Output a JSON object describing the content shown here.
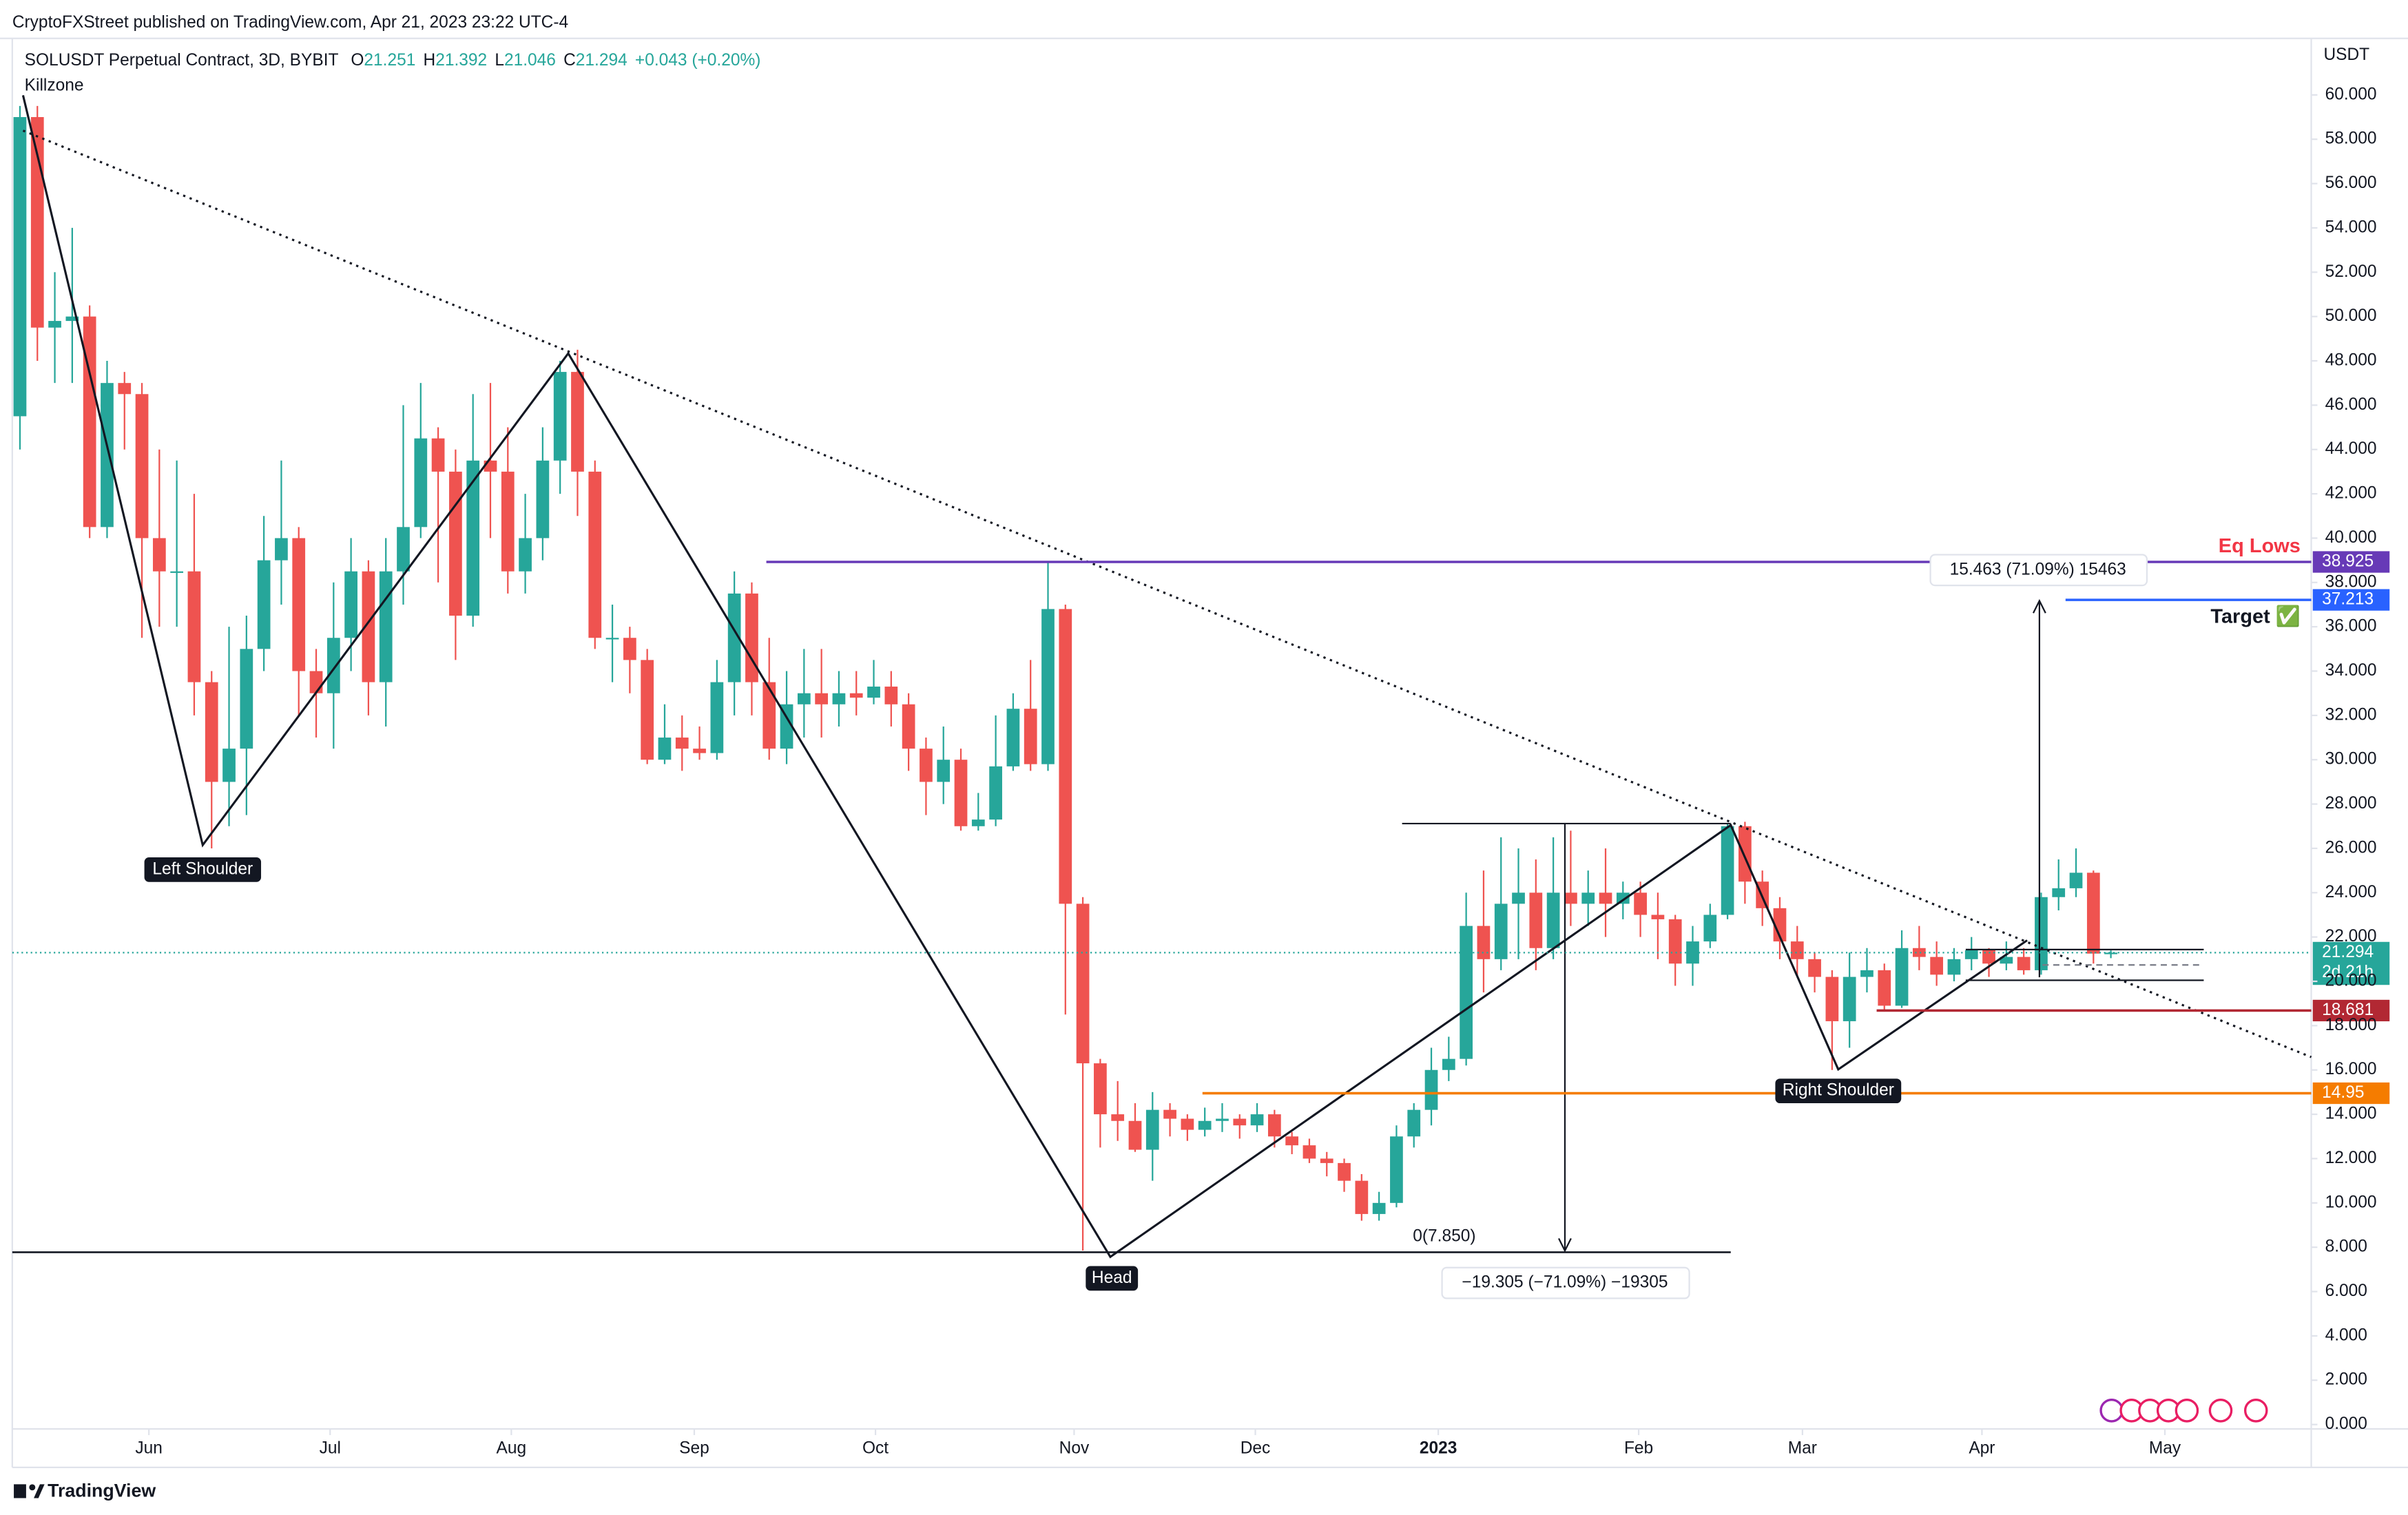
{
  "header": "CryptoFXStreet published on TradingView.com, Apr 21, 2023 23:22 UTC-4",
  "footer": "TradingView",
  "chart_data": {
    "type": "candlestick",
    "title": "SOLUSDT Perpetual Contract, 3D, BYBIT",
    "ohlc": [
      {
        "label": "O",
        "value": 21.251
      },
      {
        "label": "H",
        "value": 21.392
      },
      {
        "label": "L",
        "value": 21.046
      },
      {
        "label": "C",
        "value": 21.294
      }
    ],
    "change": "+0.043 (+0.20%)",
    "indicator": "Killzone",
    "currency": "USDT",
    "countdown": "2d 21h",
    "annotations": {
      "left_shoulder": "Left Shoulder",
      "head": "Head",
      "right_shoulder": "Right Shoulder",
      "eq_lows": "Eq Lows",
      "target": "Target ✅",
      "up_measure": "15.463 (71.09%) 15463",
      "down_measure": "−19.305 (−71.09%) −19305",
      "fib_zero": "0(7.850)"
    },
    "price_lines": [
      {
        "value": 38.925,
        "color": "#673ab7"
      },
      {
        "value": 37.213,
        "color": "#2962ff"
      },
      {
        "value": 18.681,
        "color": "#b22833"
      },
      {
        "value": 14.95,
        "color": "#f57c00"
      }
    ],
    "up_color": "#26a69a",
    "down_color": "#ef5350",
    "open": [
      45.5,
      59,
      49.5,
      49.8,
      50,
      40.5,
      47,
      46.5,
      40,
      38.5,
      38.5,
      33.5,
      29,
      30.5,
      35,
      39,
      40,
      34,
      33,
      35.5,
      38.5,
      33.5,
      38.5,
      40.5,
      44.5,
      43,
      36.5,
      43.5,
      43,
      38.5,
      40,
      43.5,
      47.5,
      43,
      35.5,
      35.5,
      34.5,
      30,
      31,
      30.5,
      30.3,
      33.5,
      37.5,
      33.5,
      30.5,
      32.5,
      33,
      32.5,
      33,
      32.8,
      33.3,
      32.5,
      30.5,
      29,
      30,
      27,
      27.3,
      29.7,
      32.3,
      29.8,
      36.8,
      23.5,
      16.3,
      14,
      13.7,
      12.4,
      14.2,
      13.8,
      13.3,
      13.7,
      13.8,
      13.5,
      14,
      13,
      12.6,
      12,
      11.8,
      11,
      9.5,
      10,
      13,
      14.2,
      16,
      16.5,
      22.5,
      21,
      23.5,
      24,
      21.5,
      24,
      23.5,
      24,
      23.5,
      24,
      23,
      22.8,
      20.8,
      21.8,
      23,
      27,
      24.5,
      23.3,
      21.8,
      21,
      20.2,
      18.2,
      20.2,
      20.5,
      18.9,
      21.5,
      21.1,
      20.3,
      21,
      21.4,
      20.8,
      21.1,
      20.5,
      23.8,
      24.2,
      24.9,
      21.251
    ],
    "close": [
      59,
      49.5,
      49.8,
      50,
      40.5,
      47,
      46.5,
      40,
      38.5,
      38.5,
      33.5,
      29,
      30.5,
      35,
      39,
      40,
      34,
      33,
      35.5,
      38.5,
      33.5,
      38.5,
      40.5,
      44.5,
      43,
      36.5,
      43.5,
      43,
      38.5,
      40,
      43.5,
      47.5,
      43,
      35.5,
      35.5,
      34.5,
      30,
      31,
      30.5,
      30.3,
      33.5,
      37.5,
      33.5,
      30.5,
      32.5,
      33,
      32.5,
      33,
      32.8,
      33.3,
      32.5,
      30.5,
      29,
      30,
      27,
      27.3,
      29.7,
      32.3,
      29.8,
      36.8,
      23.5,
      16.3,
      14,
      13.7,
      12.4,
      14.2,
      13.8,
      13.3,
      13.7,
      13.8,
      13.5,
      14,
      13,
      12.6,
      12,
      11.8,
      11,
      9.5,
      10,
      13,
      14.2,
      16,
      16.5,
      22.5,
      21,
      23.5,
      24,
      21.5,
      24,
      23.5,
      24,
      23.5,
      24,
      23,
      22.8,
      20.8,
      21.8,
      23,
      27,
      24.5,
      23.3,
      21.8,
      21,
      20.2,
      18.2,
      20.2,
      20.5,
      18.9,
      21.5,
      21.1,
      20.3,
      21,
      21.4,
      20.8,
      21.1,
      20.5,
      23.8,
      24.2,
      24.9,
      21.251,
      21.294
    ],
    "high": [
      59.5,
      59.5,
      52,
      54,
      50.5,
      48,
      47.5,
      47,
      44,
      43.5,
      42,
      34,
      36,
      36.5,
      41,
      43.5,
      40.5,
      35,
      38,
      40,
      39,
      40,
      46,
      47,
      45,
      44,
      46.5,
      47,
      45,
      42,
      45,
      48,
      48.5,
      43.5,
      37,
      36,
      35,
      32.5,
      32,
      31.5,
      34.5,
      38.5,
      38,
      35.5,
      34,
      35,
      35,
      34,
      34,
      34.5,
      34,
      33,
      31,
      31.5,
      30.5,
      28.5,
      32,
      33,
      34.5,
      38.9,
      37,
      23.8,
      16.5,
      15.5,
      14.5,
      15,
      14.5,
      14,
      14.3,
      14.5,
      14,
      14.5,
      14.2,
      13.2,
      12.9,
      12.3,
      12,
      11.3,
      10.5,
      13.5,
      14.5,
      17,
      17.5,
      24,
      25,
      26.5,
      26,
      25.5,
      26.5,
      26.8,
      25,
      26,
      24.5,
      24.5,
      24,
      23,
      22.5,
      23.5,
      27.1,
      27.2,
      25,
      23.8,
      22.5,
      21.3,
      20.5,
      21.3,
      21.5,
      20.8,
      22.3,
      22.5,
      21.8,
      21.5,
      22,
      21.5,
      21.8,
      21.5,
      24,
      25.5,
      26,
      25,
      21.392
    ],
    "low": [
      44,
      48,
      47,
      47,
      40,
      40,
      44,
      35.5,
      36,
      36,
      32,
      26,
      27,
      27.5,
      34,
      37,
      32,
      31,
      30.5,
      34,
      32,
      31.5,
      37,
      40,
      38,
      34.5,
      36,
      40,
      37.5,
      37.5,
      39,
      42,
      41,
      35,
      33.5,
      33,
      29.8,
      29.8,
      29.5,
      30,
      30,
      32,
      32,
      30,
      29.8,
      31,
      31,
      31.5,
      32,
      32.5,
      31.5,
      29.5,
      27.5,
      28,
      26.8,
      26.8,
      27,
      29.5,
      29.5,
      29.5,
      18.5,
      7.85,
      12.5,
      12.8,
      12.3,
      11,
      13,
      12.8,
      13,
      13.2,
      12.9,
      13.2,
      12.5,
      12.2,
      11.8,
      11.2,
      10.5,
      9.2,
      9.2,
      9.8,
      12.5,
      13.5,
      15.5,
      16.2,
      19.5,
      20.5,
      21,
      20.5,
      21,
      22.5,
      22.5,
      22,
      22.8,
      22,
      21,
      19.8,
      19.8,
      21.5,
      22.8,
      23.5,
      22.5,
      21,
      20.2,
      19.5,
      16,
      17,
      19.5,
      18.7,
      18.8,
      20.5,
      19.8,
      20,
      20.5,
      20.2,
      20.5,
      20.3,
      20.3,
      23.2,
      23.8,
      20.8,
      21.046
    ],
    "xlim": [
      -0.44,
      131.5
    ],
    "xticks": [
      {
        "value": 7.4,
        "label": "Jun"
      },
      {
        "value": 17.8,
        "label": "Jul"
      },
      {
        "value": 28.2,
        "label": "Aug"
      },
      {
        "value": 38.7,
        "label": "Sep"
      },
      {
        "value": 49.1,
        "label": "Oct"
      },
      {
        "value": 60.5,
        "label": "Nov"
      },
      {
        "value": 70.9,
        "label": "Dec"
      },
      {
        "value": 81.4,
        "label": "2023"
      },
      {
        "value": 92.9,
        "label": "Feb"
      },
      {
        "value": 102.3,
        "label": "Mar"
      },
      {
        "value": 112.6,
        "label": "Apr"
      },
      {
        "value": 123.1,
        "label": "May"
      }
    ],
    "ylim": [
      -0.2,
      62.55
    ],
    "yticks": [
      {
        "value": 0,
        "label": "0.000"
      },
      {
        "value": 2,
        "label": "2.000"
      },
      {
        "value": 4,
        "label": "4.000"
      },
      {
        "value": 6,
        "label": "6.000"
      },
      {
        "value": 8,
        "label": "8.000"
      },
      {
        "value": 10,
        "label": "10.000"
      },
      {
        "value": 12,
        "label": "12.000"
      },
      {
        "value": 14,
        "label": "14.000"
      },
      {
        "value": 16,
        "label": "16.000"
      },
      {
        "value": 18,
        "label": "18.000"
      },
      {
        "value": 20,
        "label": "20.000"
      },
      {
        "value": 22,
        "label": "22.000"
      },
      {
        "value": 24,
        "label": "24.000"
      },
      {
        "value": 26,
        "label": "26.000"
      },
      {
        "value": 28,
        "label": "28.000"
      },
      {
        "value": 30,
        "label": "30.000"
      },
      {
        "value": 32,
        "label": "32.000"
      },
      {
        "value": 34,
        "label": "34.000"
      },
      {
        "value": 36,
        "label": "36.000"
      },
      {
        "value": 38,
        "label": "38.000"
      },
      {
        "value": 40,
        "label": "40.000"
      },
      {
        "value": 42,
        "label": "42.000"
      },
      {
        "value": 44,
        "label": "44.000"
      },
      {
        "value": 46,
        "label": "46.000"
      },
      {
        "value": 48,
        "label": "48.000"
      },
      {
        "value": 50,
        "label": "50.000"
      },
      {
        "value": 52,
        "label": "52.000"
      },
      {
        "value": 54,
        "label": "54.000"
      },
      {
        "value": 56,
        "label": "56.000"
      },
      {
        "value": 58,
        "label": "58.000"
      },
      {
        "value": 60,
        "label": "60.000"
      }
    ],
    "grid": false
  }
}
